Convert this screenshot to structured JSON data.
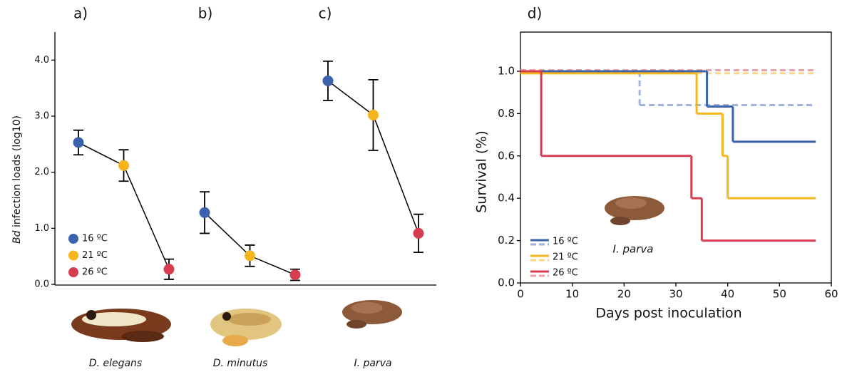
{
  "chart_data": [
    {
      "type": "dot-errorbar",
      "ylabel_italic": "Bd",
      "ylabel": "infection loads (log10)",
      "ylim": [
        0,
        4.5
      ],
      "yticks": [
        {
          "value": 0,
          "label": "0.0"
        },
        {
          "value": 1,
          "label": "1.0"
        },
        {
          "value": 2,
          "label": "2.0"
        },
        {
          "value": 3,
          "label": "3.0"
        },
        {
          "value": 4,
          "label": "4.0"
        }
      ],
      "panels": [
        {
          "label": "a)",
          "species": "D. elegans"
        },
        {
          "label": "b)",
          "species": "D. minutus"
        },
        {
          "label": "c)",
          "species": "I. parva"
        }
      ],
      "series": [
        {
          "name": "16 ºC",
          "color": "#3a62ad",
          "values": [
            2.53,
            1.28,
            3.63
          ],
          "errors": [
            0.22,
            0.37,
            0.35
          ]
        },
        {
          "name": "21 ºC",
          "color": "#f6b51c",
          "values": [
            2.12,
            0.51,
            3.02
          ],
          "errors": [
            0.28,
            0.19,
            0.63
          ]
        },
        {
          "name": "26 ºC",
          "color": "#d63d51",
          "values": [
            0.27,
            0.17,
            0.91
          ],
          "errors": [
            0.18,
            0.1,
            0.34
          ]
        }
      ]
    },
    {
      "type": "step",
      "label": "d)",
      "xlabel": "Days post inoculation",
      "ylabel": "Survival (%)",
      "annotation": "I. parva",
      "xlim": [
        0,
        60
      ],
      "ylim": [
        0,
        1.185
      ],
      "xticks": [
        0,
        10,
        20,
        30,
        40,
        50,
        60
      ],
      "yticks": [
        {
          "value": 0,
          "label": "0.0"
        },
        {
          "value": 0.2,
          "label": "0.2"
        },
        {
          "value": 0.4,
          "label": "0.4"
        },
        {
          "value": 0.6,
          "label": "0.6"
        },
        {
          "value": 0.8,
          "label": "0.8"
        },
        {
          "value": 1,
          "label": "1.0"
        }
      ],
      "x_end": 57,
      "series": [
        {
          "name": "16 ºC",
          "color": "#3a62ad",
          "x": [
            0,
            36,
            41
          ],
          "values": [
            1.0,
            0.833,
            0.667
          ],
          "dashed_color": "#9fb3dc",
          "dashed_x": [
            0,
            23
          ],
          "dashed_values": [
            1.0,
            0.84
          ]
        },
        {
          "name": "21 ºC",
          "color": "#f6b51c",
          "x": [
            0,
            34,
            39,
            40
          ],
          "values": [
            0.99,
            0.8,
            0.6,
            0.4
          ],
          "dashed_color": "#fad58a",
          "dashed_x": [
            0
          ],
          "dashed_values": [
            0.99
          ]
        },
        {
          "name": "26 ºC",
          "color": "#d63d51",
          "x": [
            0,
            4,
            33,
            35
          ],
          "values": [
            1.0,
            0.6,
            0.4,
            0.2
          ],
          "dashed_color": "#eda0aa",
          "dashed_x": [
            0
          ],
          "dashed_values": [
            1.005
          ]
        }
      ]
    }
  ]
}
